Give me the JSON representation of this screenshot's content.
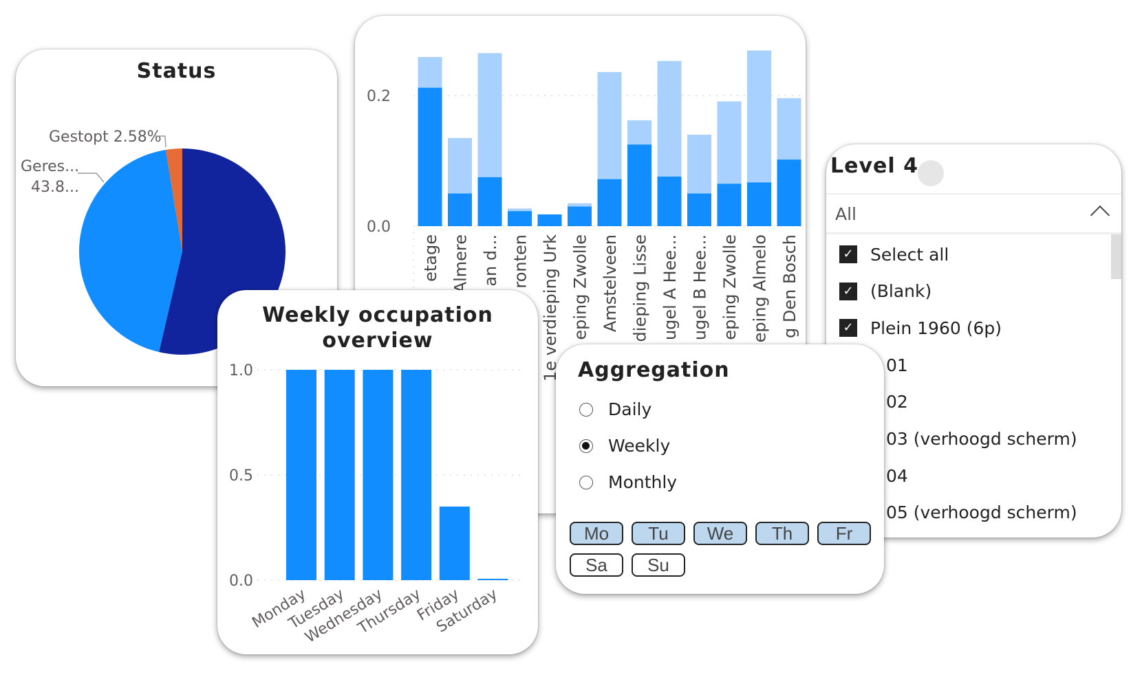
{
  "colors": {
    "dark": "#12239E",
    "primary": "#118DFF",
    "orange": "#E66C37",
    "light": "#A9D1FF"
  },
  "status": {
    "title": "Status",
    "label_gestopt": "Gestopt 2.58%",
    "label_geres_name": "Geres...",
    "label_geres_value": "43.8..."
  },
  "aggregation": {
    "title": "Aggregation",
    "options": [
      {
        "label": "Daily",
        "selected": false
      },
      {
        "label": "Weekly",
        "selected": true
      },
      {
        "label": "Monthly",
        "selected": false
      }
    ],
    "days": [
      {
        "label": "Mo",
        "active": true
      },
      {
        "label": "Tu",
        "active": true
      },
      {
        "label": "We",
        "active": true
      },
      {
        "label": "Th",
        "active": true
      },
      {
        "label": "Fr",
        "active": true
      },
      {
        "label": "Sa",
        "active": false
      },
      {
        "label": "Su",
        "active": false
      }
    ]
  },
  "slicer": {
    "title": "Level 4",
    "value": "All",
    "items": [
      {
        "label": "Select all",
        "checked": true
      },
      {
        "label": "(Blank)",
        "checked": true
      },
      {
        "label": "Plein 1960 (6p)",
        "checked": true
      },
      {
        "label": "01",
        "checked": true
      },
      {
        "label": "02",
        "checked": true
      },
      {
        "label": "03 (verhoogd scherm)",
        "checked": true
      },
      {
        "label": "04",
        "checked": true
      },
      {
        "label": "05 (verhoogd scherm)",
        "checked": true
      }
    ]
  },
  "chart_data": [
    {
      "type": "pie",
      "title": "Status",
      "slices": [
        {
          "name": "",
          "value": 53.62,
          "color": "#12239E"
        },
        {
          "name": "Geres...",
          "value": 43.8,
          "color": "#118DFF"
        },
        {
          "name": "Gestopt",
          "value": 2.58,
          "color": "#E66C37"
        }
      ]
    },
    {
      "type": "bar",
      "stacked": true,
      "title": "",
      "categories": [
        "etage",
        "Almere",
        "an d...",
        "ronten",
        "1e verdieping Urk",
        "eping Zwolle",
        "Amstelveen",
        "dieping Lisse",
        "ugel A Hee...",
        "ugel B Hee...",
        "eping Zwolle",
        "eping Almelo",
        "g Den Bosch"
      ],
      "series": [
        {
          "name": "base",
          "values": [
            0.212,
            0.05,
            0.075,
            0.023,
            0.018,
            0.03,
            0.072,
            0.125,
            0.076,
            0.05,
            0.065,
            0.067,
            0.102
          ]
        },
        {
          "name": "extra",
          "values": [
            0.047,
            0.085,
            0.19,
            0.004,
            0.0,
            0.005,
            0.164,
            0.037,
            0.177,
            0.09,
            0.126,
            0.202,
            0.094
          ]
        }
      ],
      "yticks": [
        "0.0",
        "0.2"
      ],
      "ylim": [
        0,
        0.28
      ],
      "grid": true
    },
    {
      "type": "bar",
      "title": "Weekly occupation overview",
      "title_lines": [
        "Weekly occupation",
        "overview"
      ],
      "categories": [
        "Monday",
        "Tuesday",
        "Wednesday",
        "Thursday",
        "Friday",
        "Saturday"
      ],
      "values": [
        1.0,
        1.0,
        1.0,
        1.0,
        0.35,
        0.005
      ],
      "yticks": [
        "0.0",
        "0.5",
        "1.0"
      ],
      "ylim": [
        0,
        1.0
      ],
      "grid": true
    }
  ]
}
